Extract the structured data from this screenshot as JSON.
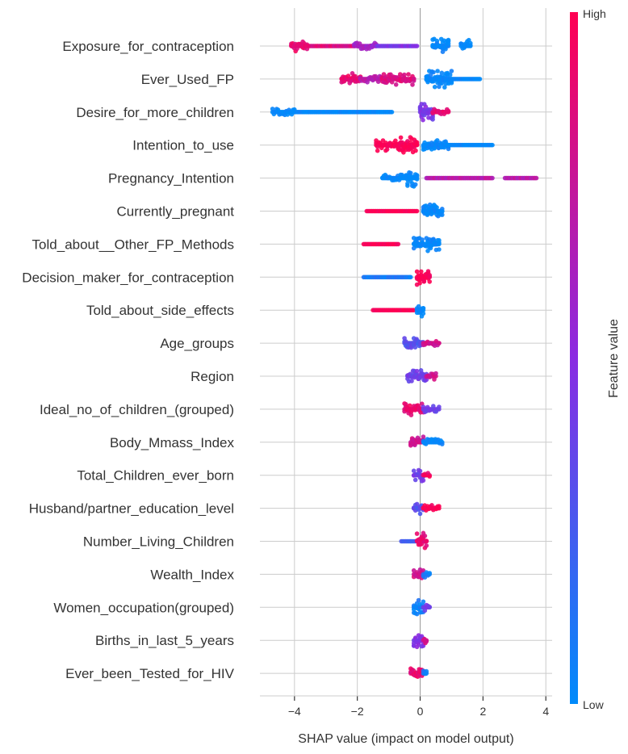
{
  "chart_data": {
    "type": "scatter",
    "subtype": "shap-beeswarm-summary",
    "title": "",
    "xlabel": "SHAP value (impact on model output)",
    "ylabel": "",
    "xlim": [
      -5.1,
      4.2
    ],
    "xticks": [
      -4,
      -2,
      0,
      2,
      4
    ],
    "xtick_labels": [
      "−4",
      "−2",
      "0",
      "2",
      "4"
    ],
    "grid": true,
    "colorbar": {
      "label": "Feature value",
      "high_label": "High",
      "low_label": "Low",
      "high_color": "#ff0052",
      "mid_color": "#8a2be2",
      "low_color": "#008bfb"
    },
    "features": [
      {
        "name": "Exposure_for_contraception",
        "segments": [
          {
            "from": -4.1,
            "to": -3.6,
            "value": 0.9,
            "density": 3
          },
          {
            "from": -3.6,
            "to": -2.1,
            "value": 0.85,
            "density": 1
          },
          {
            "from": -2.1,
            "to": -1.4,
            "value": 0.6,
            "density": 2
          },
          {
            "from": -1.4,
            "to": -0.1,
            "value": 0.45,
            "density": 1
          },
          {
            "from": 0.4,
            "to": 0.9,
            "value": 0.0,
            "density": 4
          },
          {
            "from": 1.3,
            "to": 1.6,
            "value": 0.0,
            "density": 3
          }
        ]
      },
      {
        "name": "Ever_Used_FP",
        "segments": [
          {
            "from": -2.5,
            "to": -1.9,
            "value": 0.9,
            "density": 3
          },
          {
            "from": -1.9,
            "to": -1.2,
            "value": 0.7,
            "density": 2
          },
          {
            "from": -1.2,
            "to": -0.2,
            "value": 0.85,
            "density": 3
          },
          {
            "from": 0.2,
            "to": 1.0,
            "value": 0.0,
            "density": 4
          },
          {
            "from": 1.0,
            "to": 1.9,
            "value": 0.0,
            "density": 1
          }
        ]
      },
      {
        "name": "Desire_for_more_children",
        "segments": [
          {
            "from": -4.7,
            "to": -4.0,
            "value": 0.0,
            "density": 2
          },
          {
            "from": -4.0,
            "to": -0.9,
            "value": 0.0,
            "density": 1
          },
          {
            "from": 0.0,
            "to": 0.4,
            "value": 0.45,
            "density": 4
          },
          {
            "from": 0.4,
            "to": 0.9,
            "value": 0.9,
            "density": 2
          }
        ]
      },
      {
        "name": "Intention_to_use",
        "segments": [
          {
            "from": -1.4,
            "to": -0.7,
            "value": 1.0,
            "density": 3
          },
          {
            "from": -0.7,
            "to": -0.1,
            "value": 1.0,
            "density": 4
          },
          {
            "from": 0.1,
            "to": 0.9,
            "value": 0.0,
            "density": 3
          },
          {
            "from": 0.9,
            "to": 2.3,
            "value": 0.0,
            "density": 1
          }
        ]
      },
      {
        "name": "Pregnancy_Intention",
        "segments": [
          {
            "from": -1.2,
            "to": -0.4,
            "value": 0.0,
            "density": 2
          },
          {
            "from": -0.4,
            "to": -0.1,
            "value": 0.0,
            "density": 4
          },
          {
            "from": 0.2,
            "to": 2.3,
            "value": 0.7,
            "density": 1
          },
          {
            "from": 2.7,
            "to": 3.7,
            "value": 0.7,
            "density": 1
          }
        ]
      },
      {
        "name": "Currently_pregnant",
        "segments": [
          {
            "from": -1.7,
            "to": -0.1,
            "value": 1.0,
            "density": 1
          },
          {
            "from": 0.1,
            "to": 0.7,
            "value": 0.0,
            "density": 4
          }
        ]
      },
      {
        "name": "Told_about__Other_FP_Methods",
        "segments": [
          {
            "from": -1.8,
            "to": -0.7,
            "value": 1.0,
            "density": 1
          },
          {
            "from": -0.2,
            "to": 0.6,
            "value": 0.0,
            "density": 4
          }
        ]
      },
      {
        "name": "Decision_maker_for_contraception",
        "segments": [
          {
            "from": -1.8,
            "to": -0.3,
            "value": 0.1,
            "density": 1
          },
          {
            "from": -0.1,
            "to": 0.3,
            "value": 1.0,
            "density": 4
          }
        ]
      },
      {
        "name": "Told_about_side_effects",
        "segments": [
          {
            "from": -1.5,
            "to": -0.2,
            "value": 1.0,
            "density": 1
          },
          {
            "from": -0.1,
            "to": 0.1,
            "value": 0.0,
            "density": 4
          }
        ]
      },
      {
        "name": "Age_groups",
        "segments": [
          {
            "from": -0.5,
            "to": 0.1,
            "value": 0.3,
            "density": 3
          },
          {
            "from": 0.1,
            "to": 0.6,
            "value": 0.8,
            "density": 2
          }
        ]
      },
      {
        "name": "Region",
        "segments": [
          {
            "from": -0.4,
            "to": 0.2,
            "value": 0.4,
            "density": 3
          },
          {
            "from": 0.2,
            "to": 0.5,
            "value": 0.8,
            "density": 2
          }
        ]
      },
      {
        "name": "Ideal_no_of_children_(grouped)",
        "segments": [
          {
            "from": -0.5,
            "to": 0.1,
            "value": 0.9,
            "density": 3
          },
          {
            "from": 0.1,
            "to": 0.6,
            "value": 0.4,
            "density": 2
          }
        ]
      },
      {
        "name": "Body_Mmass_Index",
        "segments": [
          {
            "from": -0.3,
            "to": 0.1,
            "value": 0.8,
            "density": 3
          },
          {
            "from": 0.1,
            "to": 0.7,
            "value": 0.0,
            "density": 2
          }
        ]
      },
      {
        "name": "Total_Children_ever_born",
        "segments": [
          {
            "from": -0.2,
            "to": 0.1,
            "value": 0.4,
            "density": 3
          },
          {
            "from": 0.1,
            "to": 0.3,
            "value": 0.95,
            "density": 2
          }
        ]
      },
      {
        "name": "Husband/partner_education_level",
        "segments": [
          {
            "from": -0.2,
            "to": 0.1,
            "value": 0.3,
            "density": 3
          },
          {
            "from": 0.1,
            "to": 0.6,
            "value": 1.0,
            "density": 2
          }
        ]
      },
      {
        "name": "Number_Living_Children",
        "segments": [
          {
            "from": -0.6,
            "to": -0.1,
            "value": 0.25,
            "density": 1
          },
          {
            "from": -0.1,
            "to": 0.2,
            "value": 0.9,
            "density": 4
          }
        ]
      },
      {
        "name": "Wealth_Index",
        "segments": [
          {
            "from": -0.2,
            "to": 0.1,
            "value": 0.8,
            "density": 3
          },
          {
            "from": 0.1,
            "to": 0.3,
            "value": 0.1,
            "density": 2
          }
        ]
      },
      {
        "name": "Women_occupation(grouped)",
        "segments": [
          {
            "from": -0.2,
            "to": 0.1,
            "value": 0.05,
            "density": 4
          },
          {
            "from": 0.1,
            "to": 0.3,
            "value": 0.4,
            "density": 2
          }
        ]
      },
      {
        "name": "Births_in_last_5_years",
        "segments": [
          {
            "from": -0.2,
            "to": 0.1,
            "value": 0.45,
            "density": 4
          },
          {
            "from": 0.1,
            "to": 0.2,
            "value": 0.8,
            "density": 2
          }
        ]
      },
      {
        "name": "Ever_been_Tested_for_HIV",
        "segments": [
          {
            "from": -0.3,
            "to": 0.1,
            "value": 0.9,
            "density": 3
          },
          {
            "from": 0.1,
            "to": 0.2,
            "value": 0.1,
            "density": 2
          }
        ]
      }
    ]
  }
}
